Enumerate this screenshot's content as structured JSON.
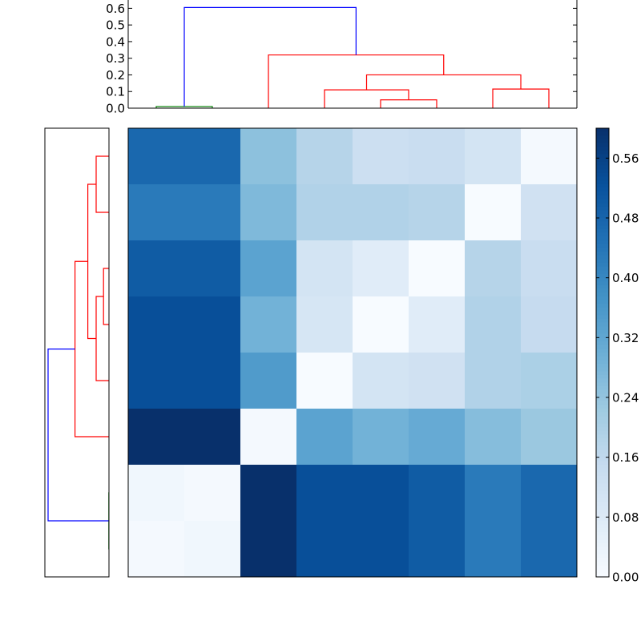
{
  "chart_data": [
    {
      "type": "dendrogram",
      "orientation": "top",
      "ylim": [
        0,
        0.65
      ],
      "yticks": [
        "0.0",
        "0.1",
        "0.2",
        "0.3",
        "0.4",
        "0.5",
        "0.6"
      ],
      "ytick_values": [
        0.0,
        0.1,
        0.2,
        0.3,
        0.4,
        0.5,
        0.6
      ],
      "leaf_count": 8,
      "links": [
        {
          "left": 0.5,
          "right": 1.5,
          "left_height": 0.0,
          "right_height": 0.0,
          "height": 0.01,
          "color": "#008000"
        },
        {
          "left": 4.5,
          "right": 5.5,
          "left_height": 0.0,
          "right_height": 0.0,
          "height": 0.05,
          "color": "#ff0000"
        },
        {
          "left": 3.5,
          "right": 5.0,
          "left_height": 0.0,
          "right_height": 0.05,
          "height": 0.11,
          "color": "#ff0000"
        },
        {
          "left": 6.5,
          "right": 7.5,
          "left_height": 0.0,
          "right_height": 0.0,
          "height": 0.115,
          "color": "#ff0000"
        },
        {
          "left": 4.25,
          "right": 7.0,
          "left_height": 0.11,
          "right_height": 0.115,
          "height": 0.2,
          "color": "#ff0000"
        },
        {
          "left": 2.5,
          "right": 5.625,
          "left_height": 0.0,
          "right_height": 0.2,
          "height": 0.32,
          "color": "#ff0000"
        },
        {
          "left": 1.0,
          "right": 4.0625,
          "left_height": 0.01,
          "right_height": 0.32,
          "height": 0.605,
          "color": "#0000ff"
        }
      ]
    },
    {
      "type": "dendrogram",
      "orientation": "left",
      "leaf_count": 8,
      "links": [
        {
          "top": 6.5,
          "bottom": 7.5,
          "top_height": 0.0,
          "bottom_height": 0.0,
          "height": 0.002,
          "color": "#008000"
        },
        {
          "top": 0.5,
          "bottom": 1.5,
          "top_height": 0.0,
          "bottom_height": 0.0,
          "height": 0.2,
          "color": "#ff0000"
        },
        {
          "top": 2.5,
          "bottom": 3.5,
          "top_height": 0.0,
          "bottom_height": 0.0,
          "height": 0.085,
          "color": "#ff0000"
        },
        {
          "top": 3.0,
          "bottom": 4.5,
          "top_height": 0.085,
          "bottom_height": 0.0,
          "height": 0.2,
          "color": "#ff0000"
        },
        {
          "top": 1.0,
          "bottom": 3.75,
          "top_height": 0.2,
          "bottom_height": 0.2,
          "height": 0.33,
          "color": "#ff0000"
        },
        {
          "top": 2.375,
          "bottom": 5.5,
          "top_height": 0.33,
          "bottom_height": 0.0,
          "height": 0.53,
          "color": "#ff0000"
        },
        {
          "top": 3.9375,
          "bottom": 7.0,
          "top_height": 0.53,
          "bottom_height": 0.002,
          "height": 0.95,
          "color": "#0000ff"
        }
      ]
    },
    {
      "type": "heatmap",
      "rows": 8,
      "cols": 8,
      "colormap": "Blues",
      "vmin": 0.0,
      "vmax": 0.6,
      "values": [
        [
          0.47,
          0.47,
          0.25,
          0.18,
          0.13,
          0.14,
          0.11,
          0.01
        ],
        [
          0.43,
          0.43,
          0.27,
          0.19,
          0.19,
          0.18,
          0.0,
          0.12
        ],
        [
          0.5,
          0.5,
          0.33,
          0.11,
          0.07,
          0.0,
          0.18,
          0.14
        ],
        [
          0.53,
          0.53,
          0.29,
          0.1,
          0.0,
          0.07,
          0.19,
          0.15
        ],
        [
          0.53,
          0.53,
          0.35,
          0.0,
          0.11,
          0.12,
          0.19,
          0.2
        ],
        [
          0.6,
          0.6,
          0.01,
          0.33,
          0.29,
          0.31,
          0.26,
          0.23
        ],
        [
          0.02,
          0.01,
          0.6,
          0.53,
          0.53,
          0.5,
          0.43,
          0.47
        ],
        [
          0.01,
          0.02,
          0.6,
          0.53,
          0.53,
          0.5,
          0.43,
          0.47
        ]
      ]
    },
    {
      "type": "colorbar",
      "colormap": "Blues",
      "vmin": 0.0,
      "vmax": 0.6,
      "ticks": [
        "0.00",
        "0.08",
        "0.16",
        "0.24",
        "0.32",
        "0.40",
        "0.48",
        "0.56"
      ],
      "tick_values": [
        0.0,
        0.08,
        0.16,
        0.24,
        0.32,
        0.4,
        0.48,
        0.56
      ]
    }
  ]
}
